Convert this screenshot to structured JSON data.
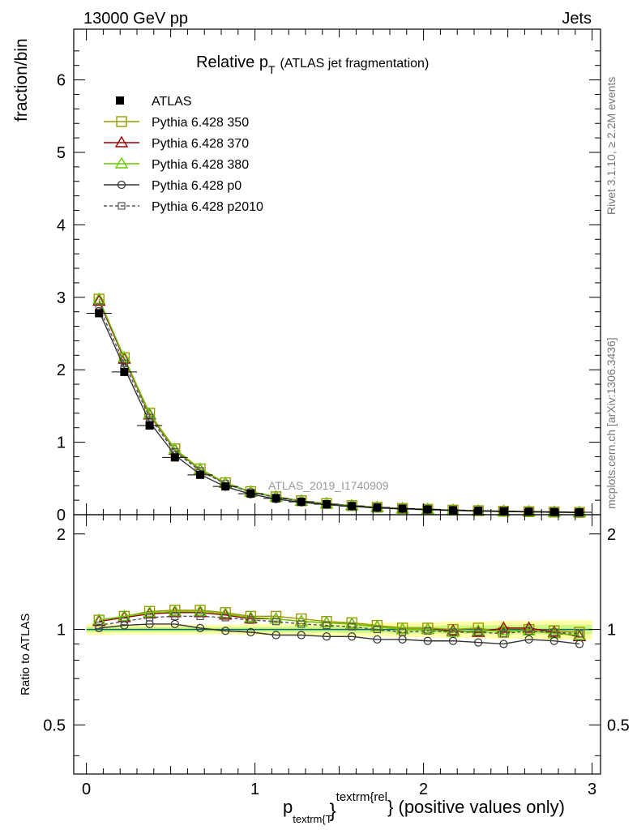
{
  "header": {
    "energy_label": "13000 GeV pp",
    "category_label": "Jets"
  },
  "side_labels": {
    "rivet": "Rivet 3.1.10, ≥ 2.2M events",
    "mcplots": "mcplots.cern.ch [arXiv:1306.3436]"
  },
  "chart_data": {
    "type": "line",
    "title_main": "Relative p",
    "title_sub": "T",
    "title_extra": "(ATLAS jet fragmentation)",
    "watermark": "ATLAS_2019_I1740909",
    "ylabel": "fraction/bin",
    "ratio_ylabel": "Ratio to ATLAS",
    "xlabel_main": "p",
    "xlabel_sub": "textrm{T",
    "xlabel_sup": "textrm{rel",
    "xlabel_tail": "} (positive values only)",
    "xlim": [
      -0.075,
      3.05
    ],
    "ylim": [
      0,
      6.7
    ],
    "ratio_ylim": [
      0.35,
      2.3
    ],
    "x_ticks": [
      "0",
      "1",
      "2",
      "3"
    ],
    "y_ticks": [
      "0",
      "1",
      "2",
      "3",
      "4",
      "5",
      "6"
    ],
    "ratio_ticks": [
      "0.5",
      "1",
      "2"
    ],
    "x": [
      0.075,
      0.225,
      0.375,
      0.525,
      0.675,
      0.825,
      0.975,
      1.125,
      1.275,
      1.425,
      1.575,
      1.725,
      1.875,
      2.025,
      2.175,
      2.325,
      2.475,
      2.625,
      2.775,
      2.925
    ],
    "atlas": [
      2.78,
      1.97,
      1.23,
      0.79,
      0.55,
      0.39,
      0.29,
      0.225,
      0.178,
      0.145,
      0.12,
      0.1,
      0.085,
      0.074,
      0.063,
      0.055,
      0.048,
      0.042,
      0.037,
      0.033
    ],
    "atlas_band": [
      0.04,
      0.035,
      0.035,
      0.035,
      0.035,
      0.035,
      0.04,
      0.04,
      0.045,
      0.045,
      0.05,
      0.05,
      0.055,
      0.055,
      0.06,
      0.06,
      0.065,
      0.065,
      0.07,
      0.07
    ],
    "series": [
      {
        "name": "Pythia 6.428 350",
        "color": "#999900",
        "marker": "square-open",
        "dash": "none",
        "ratio": [
          1.07,
          1.1,
          1.14,
          1.15,
          1.15,
          1.13,
          1.1,
          1.1,
          1.08,
          1.06,
          1.05,
          1.03,
          1.01,
          1.01,
          1.0,
          1.01,
          0.98,
          1.0,
          0.99,
          0.98
        ]
      },
      {
        "name": "Pythia 6.428 370",
        "color": "#990000",
        "marker": "triangle-open",
        "dash": "none",
        "ratio": [
          1.06,
          1.09,
          1.12,
          1.13,
          1.13,
          1.11,
          1.08,
          1.08,
          1.06,
          1.05,
          1.04,
          1.02,
          1.0,
          1.0,
          0.99,
          0.98,
          1.01,
          1.01,
          0.98,
          0.95
        ]
      },
      {
        "name": "Pythia 6.428 380",
        "color": "#66cc00",
        "marker": "triangle-open",
        "dash": "none",
        "ratio": [
          1.07,
          1.1,
          1.13,
          1.14,
          1.14,
          1.12,
          1.09,
          1.08,
          1.06,
          1.05,
          1.04,
          1.02,
          1.0,
          1.0,
          0.98,
          0.99,
          0.99,
          0.99,
          0.97,
          0.96
        ]
      },
      {
        "name": "Pythia 6.428 p0",
        "color": "#333333",
        "marker": "circle-open",
        "dash": "none",
        "ratio": [
          1.01,
          1.03,
          1.04,
          1.04,
          1.01,
          0.99,
          0.98,
          0.96,
          0.96,
          0.95,
          0.95,
          0.93,
          0.93,
          0.92,
          0.92,
          0.91,
          0.9,
          0.93,
          0.92,
          0.9
        ]
      },
      {
        "name": "Pythia 6.428 p2010",
        "color": "#555555",
        "marker": "square-open-small",
        "dash": "4,3",
        "ratio": [
          1.03,
          1.06,
          1.09,
          1.1,
          1.1,
          1.09,
          1.07,
          1.06,
          1.04,
          1.03,
          1.02,
          1.0,
          0.98,
          0.99,
          0.98,
          0.98,
          0.97,
          0.99,
          0.98,
          0.97
        ]
      }
    ]
  }
}
